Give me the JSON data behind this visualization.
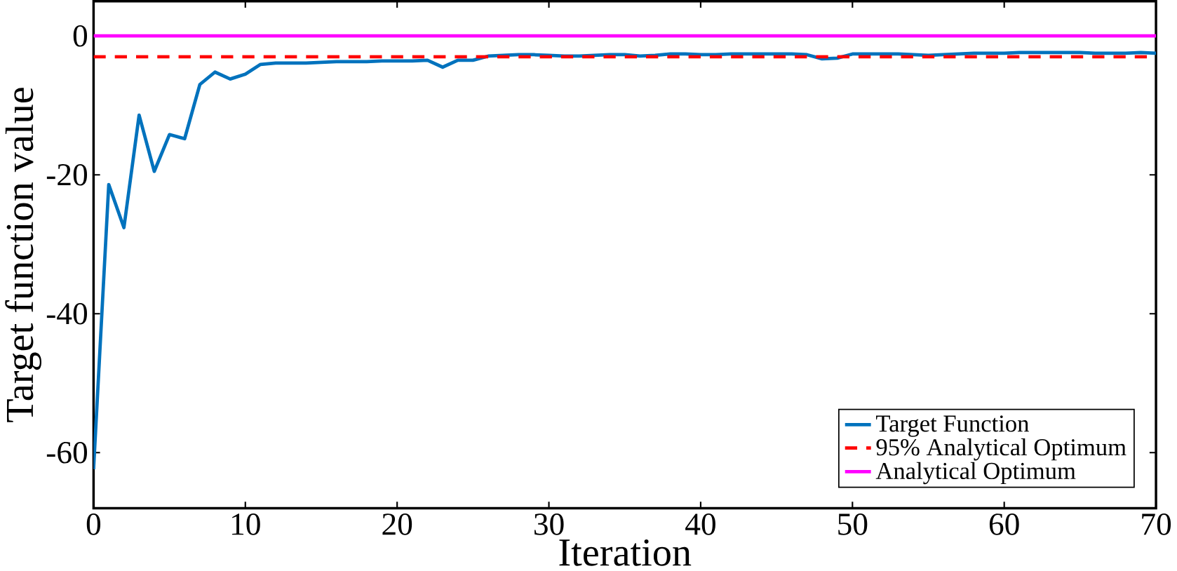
{
  "chart_data": {
    "type": "line",
    "xlabel": "Iteration",
    "ylabel": "Target function value",
    "xlim": [
      0,
      70
    ],
    "ylim": [
      -68,
      5
    ],
    "xticks": [
      0,
      10,
      20,
      30,
      40,
      50,
      60,
      70
    ],
    "yticks": [
      -60,
      -40,
      -20,
      0
    ],
    "legend": "bottom right",
    "grid": false,
    "series": [
      {
        "name": "Target Function",
        "color": "#0072bd",
        "line_style": "solid",
        "x": [
          0,
          1,
          2,
          3,
          4,
          5,
          6,
          7,
          8,
          9,
          10,
          11,
          12,
          13,
          14,
          15,
          16,
          17,
          18,
          19,
          20,
          21,
          22,
          23,
          24,
          25,
          26,
          27,
          28,
          29,
          30,
          31,
          32,
          33,
          34,
          35,
          36,
          37,
          38,
          39,
          40,
          41,
          42,
          43,
          44,
          45,
          46,
          47,
          48,
          49,
          50,
          51,
          52,
          53,
          54,
          55,
          56,
          57,
          58,
          59,
          60,
          61,
          62,
          63,
          64,
          65,
          66,
          67,
          68,
          69,
          70
        ],
        "values": [
          -62.4,
          -21.4,
          -27.6,
          -11.4,
          -19.5,
          -14.2,
          -14.8,
          -7.0,
          -5.2,
          -6.2,
          -5.5,
          -4.1,
          -3.9,
          -3.9,
          -3.9,
          -3.8,
          -3.7,
          -3.7,
          -3.7,
          -3.6,
          -3.6,
          -3.6,
          -3.5,
          -4.5,
          -3.5,
          -3.5,
          -2.9,
          -2.8,
          -2.7,
          -2.7,
          -2.8,
          -2.9,
          -2.9,
          -2.8,
          -2.7,
          -2.7,
          -2.9,
          -2.8,
          -2.6,
          -2.6,
          -2.7,
          -2.7,
          -2.6,
          -2.6,
          -2.6,
          -2.6,
          -2.6,
          -2.7,
          -3.3,
          -3.2,
          -2.6,
          -2.6,
          -2.6,
          -2.6,
          -2.7,
          -2.8,
          -2.7,
          -2.6,
          -2.5,
          -2.5,
          -2.5,
          -2.4,
          -2.4,
          -2.4,
          -2.4,
          -2.4,
          -2.5,
          -2.5,
          -2.5,
          -2.4,
          -2.5
        ]
      }
    ],
    "ref_lines": [
      {
        "axis": "y",
        "value": -3,
        "label": "95% Analytical Optimum",
        "color": "#ff0000",
        "line_style": "dashed"
      },
      {
        "axis": "y",
        "value": 0,
        "label": "Analytical Optimum",
        "color": "#ff00ff",
        "line_style": "solid"
      }
    ]
  }
}
